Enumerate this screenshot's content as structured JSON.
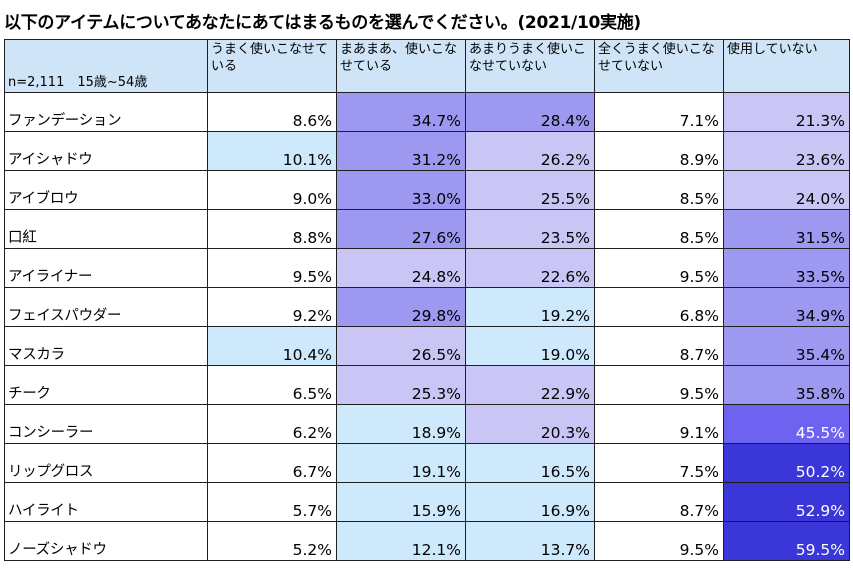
{
  "title": "以下のアイテムについてあなたにあてはまるものを選んでください。(2021/10実施)",
  "chart_data": {
    "type": "table",
    "title": "以下のアイテムについてあなたにあてはまるものを選んでください。(2021/10実施)",
    "corner_label": "n=2,111　15歳~54歳",
    "columns": [
      "うまく使いこなせている",
      "まあまあ、使いこなせている",
      "あまりうまく使いこなせていない",
      "全くうまく使いこなせていない",
      "使用していない"
    ],
    "rows": [
      {
        "label": "ファンデーション",
        "values": [
          8.6,
          34.7,
          28.4,
          7.1,
          21.3
        ]
      },
      {
        "label": "アイシャドウ",
        "values": [
          10.1,
          31.2,
          26.2,
          8.9,
          23.6
        ]
      },
      {
        "label": "アイブロウ",
        "values": [
          9.0,
          33.0,
          25.5,
          8.5,
          24.0
        ]
      },
      {
        "label": "口紅",
        "values": [
          8.8,
          27.6,
          23.5,
          8.5,
          31.5
        ]
      },
      {
        "label": "アイライナー",
        "values": [
          9.5,
          24.8,
          22.6,
          9.5,
          33.5
        ]
      },
      {
        "label": "フェイスパウダー",
        "values": [
          9.2,
          29.8,
          19.2,
          6.8,
          34.9
        ]
      },
      {
        "label": "マスカラ",
        "values": [
          10.4,
          26.5,
          19.0,
          8.7,
          35.4
        ]
      },
      {
        "label": "チーク",
        "values": [
          6.5,
          25.3,
          22.9,
          9.5,
          35.8
        ]
      },
      {
        "label": "コンシーラー",
        "values": [
          6.2,
          18.9,
          20.3,
          9.1,
          45.5
        ]
      },
      {
        "label": "リップグロス",
        "values": [
          6.7,
          19.1,
          16.5,
          7.5,
          50.2
        ]
      },
      {
        "label": "ハイライト",
        "values": [
          5.7,
          15.9,
          16.9,
          8.7,
          52.9
        ]
      },
      {
        "label": "ノーズシャドウ",
        "values": [
          5.2,
          12.1,
          13.7,
          9.5,
          59.5
        ]
      }
    ],
    "value_suffix": "%",
    "colors": {
      "header_bg": "#cfe5f7",
      "blank": "#ffffff",
      "light_blue": "#cde9fb",
      "lavender": "#c9c5f5",
      "medium": "#9d99f1",
      "strong": "#6d63f0",
      "deep": "#3b36d7"
    }
  }
}
